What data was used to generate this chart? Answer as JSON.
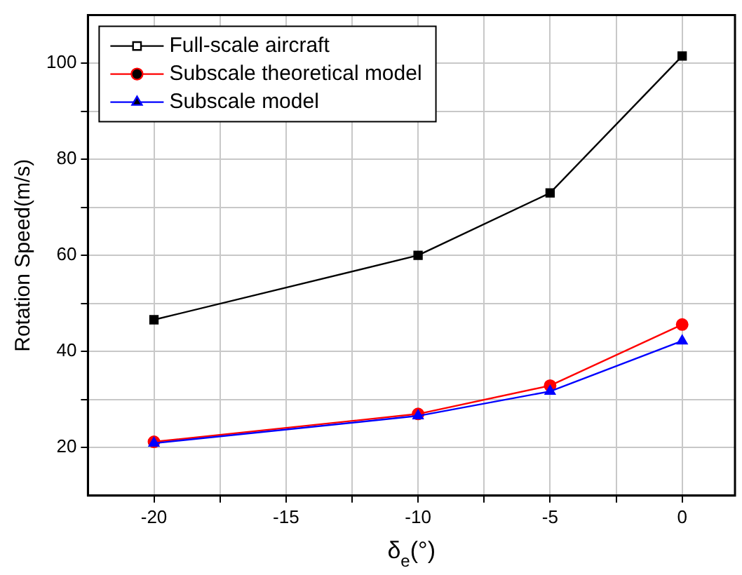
{
  "chart_data": {
    "type": "line",
    "x": [
      -20,
      -10,
      -5,
      0
    ],
    "series": [
      {
        "name": "Full-scale aircraft",
        "color": "#000000",
        "marker": "square",
        "values": [
          46.6,
          60,
          73,
          101.5
        ]
      },
      {
        "name": "Subscale theoretical model",
        "color": "#ff0000",
        "marker": "circle",
        "values": [
          21.2,
          27,
          32.9,
          45.6
        ]
      },
      {
        "name": "Subscale model",
        "color": "#0000ff",
        "marker": "triangle",
        "values": [
          20.9,
          26.6,
          31.7,
          42.2
        ]
      }
    ],
    "xlabel": "δ$_{e}$(°)",
    "ylabel": "Rotation Speed(m/s)",
    "xlim": [
      -22.5,
      2
    ],
    "ylim": [
      10,
      110
    ],
    "xticks": [
      -20,
      {
        "value": -17.5,
        "label": null
      },
      -15,
      {
        "value": -12.5,
        "label": null
      },
      -10,
      {
        "value": -7.5,
        "label": null
      },
      -5,
      {
        "value": -2.5,
        "label": null
      },
      0
    ],
    "yticks": [
      20,
      {
        "value": 30,
        "label": null
      },
      40,
      {
        "value": 50,
        "label": null
      },
      60,
      {
        "value": 70,
        "label": null
      },
      80,
      {
        "value": 90,
        "label": null
      },
      100
    ],
    "grid": true,
    "legend": "top left",
    "line_style": "solid"
  }
}
